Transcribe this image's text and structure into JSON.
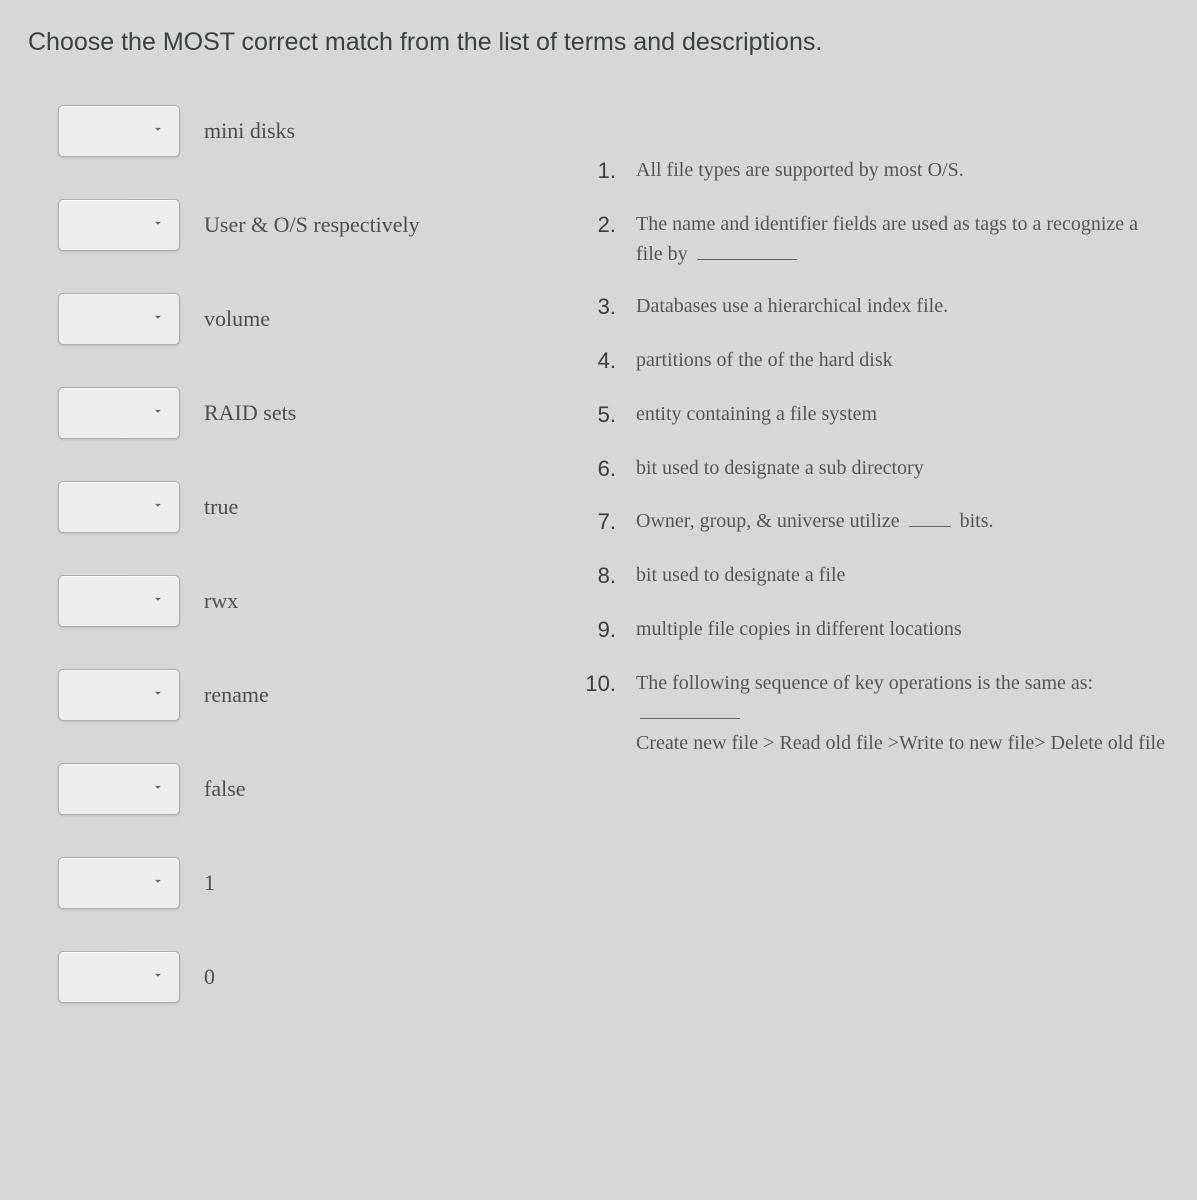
{
  "instruction": "Choose the MOST correct match from the list of terms and descriptions.",
  "terms": [
    {
      "label": "mini disks"
    },
    {
      "label": "User & O/S respectively"
    },
    {
      "label": "volume"
    },
    {
      "label": "RAID sets"
    },
    {
      "label": "true"
    },
    {
      "label": "rwx"
    },
    {
      "label": "rename"
    },
    {
      "label": "false"
    },
    {
      "label": "1"
    },
    {
      "label": "0"
    }
  ],
  "descriptions": [
    {
      "num": "1.",
      "text": "All file types are supported by most O/S."
    },
    {
      "num": "2.",
      "text": "The name and identifier fields are used as tags to a recognize a file by",
      "blank_after": true
    },
    {
      "num": "3.",
      "text": "Databases use a hierarchical index file."
    },
    {
      "num": "4.",
      "text": "partitions of the of the hard disk"
    },
    {
      "num": "5.",
      "text": "entity containing a file system"
    },
    {
      "num": "6.",
      "text": "bit used to designate a sub directory"
    },
    {
      "num": "7.",
      "text_pre": "Owner, group, & universe utilize ",
      "text_post": " bits.",
      "blank_mid": true
    },
    {
      "num": "8.",
      "text": "bit used to designate a file"
    },
    {
      "num": "9.",
      "text": "multiple file copies in different locations"
    },
    {
      "num": "10.",
      "text_pre": "The following sequence of key operations is the same as: ",
      "text_post2": "Create new file > Read old file >Write to new file> Delete old file",
      "blank_mid_long": true
    }
  ],
  "colors": {
    "background": "#d8dad8",
    "text_primary": "#3a3e3a",
    "text_term": "#4a504c",
    "select_bg": "#eceeec",
    "select_border": "#a9aea9"
  }
}
